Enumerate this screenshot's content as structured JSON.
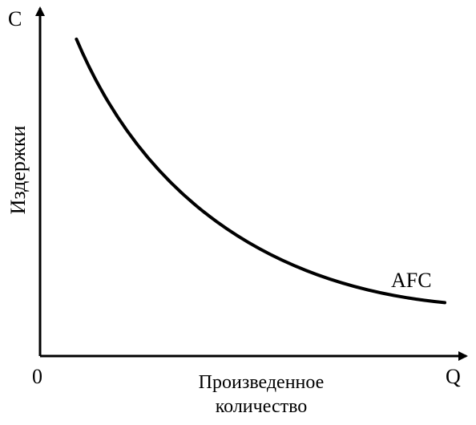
{
  "chart_data": {
    "type": "line",
    "title": "",
    "y_axis_letter": "C",
    "x_axis_letter": "Q",
    "origin_label": "0",
    "ylabel": "Издержки",
    "xlabel_line1": "Произведенное",
    "xlabel_line2": "количество",
    "ticks": "none",
    "grid": false,
    "series": [
      {
        "name": "AFC",
        "points": [
          [
            0.09,
            0.89
          ],
          [
            0.25,
            0.46
          ],
          [
            0.55,
            0.2
          ],
          [
            1.0,
            0.15
          ]
        ]
      }
    ]
  }
}
